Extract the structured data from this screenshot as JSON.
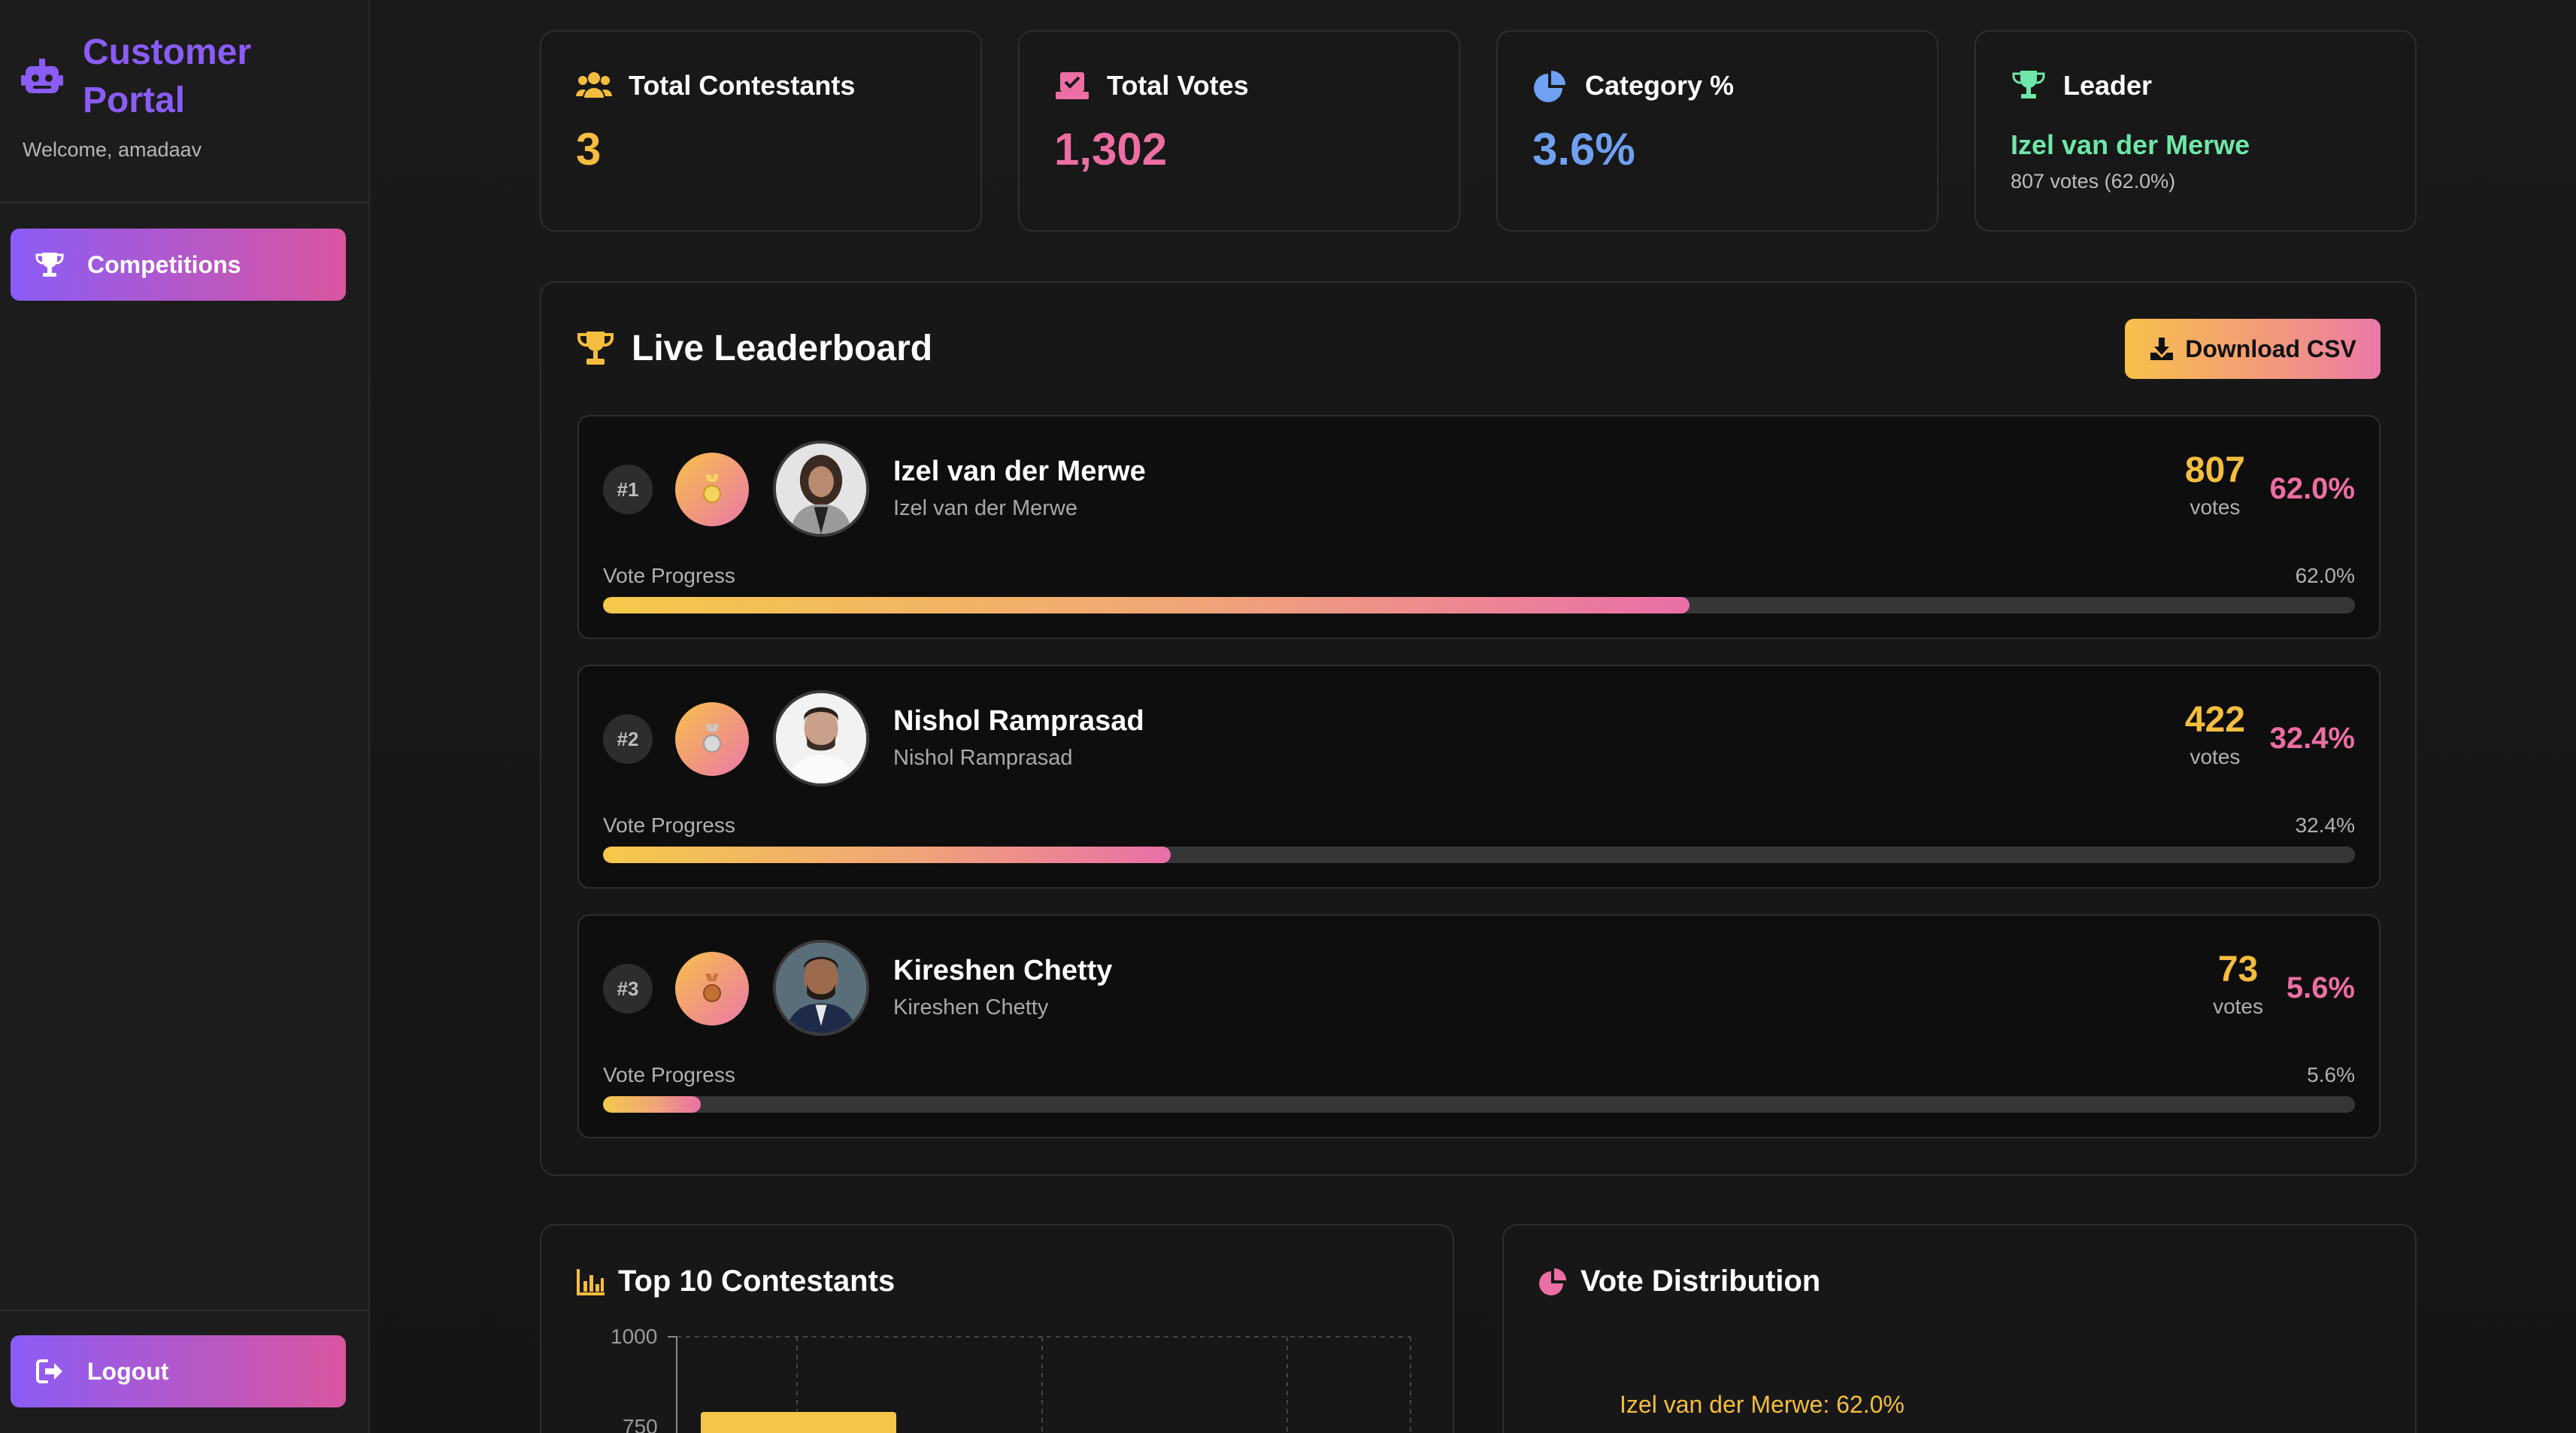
{
  "sidebar": {
    "brand": "Customer Portal",
    "welcome": "Welcome, amadaav",
    "nav": {
      "competitions": "Competitions",
      "logout": "Logout"
    }
  },
  "stats": {
    "contestants": {
      "label": "Total Contestants",
      "value": "3"
    },
    "votes": {
      "label": "Total Votes",
      "value": "1,302"
    },
    "category": {
      "label": "Category %",
      "value": "3.6%"
    },
    "leader": {
      "label": "Leader",
      "name": "Izel van der Merwe",
      "sub": "807 votes (62.0%)"
    }
  },
  "leaderboard": {
    "title": "Live Leaderboard",
    "download_label": "Download CSV",
    "progress_label": "Vote Progress",
    "votes_unit": "votes",
    "entries": [
      {
        "rank": "#1",
        "name": "Izel van der Merwe",
        "sub": "Izel van der Merwe",
        "votes": "807",
        "percent": "62.0%",
        "progress": 62.0
      },
      {
        "rank": "#2",
        "name": "Nishol Ramprasad",
        "sub": "Nishol Ramprasad",
        "votes": "422",
        "percent": "32.4%",
        "progress": 32.4
      },
      {
        "rank": "#3",
        "name": "Kireshen Chetty",
        "sub": "Kireshen Chetty",
        "votes": "73",
        "percent": "5.6%",
        "progress": 5.6
      }
    ]
  },
  "top10": {
    "title": "Top 10 Contestants",
    "y_ticks": [
      "1000",
      "750"
    ]
  },
  "distribution": {
    "title": "Vote Distribution",
    "label": "Izel van der Merwe: 62.0%"
  },
  "colors": {
    "accent_purple": "#8b5cf6",
    "accent_pink": "#ec6ea3",
    "accent_gold": "#f5bd3f",
    "accent_blue": "#6fa0f2",
    "accent_green": "#6ee7a8"
  }
}
